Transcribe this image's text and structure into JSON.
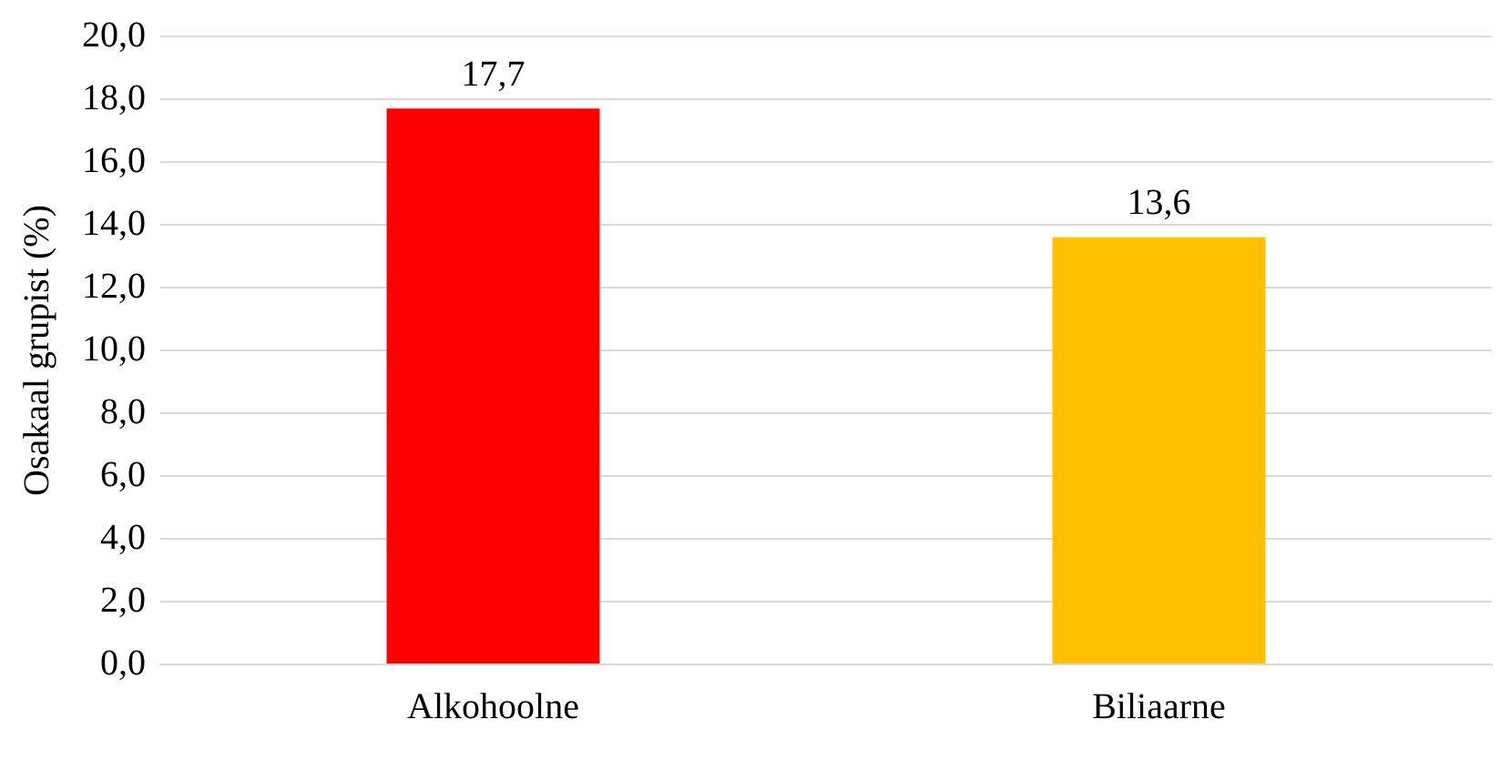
{
  "chart_data": {
    "type": "bar",
    "ylabel": "Osakaal grupist (%)",
    "categories": [
      "Alkohoolne",
      "Biliaarne"
    ],
    "values": [
      17.7,
      13.6
    ],
    "colors": [
      "#ff0000",
      "#ffc000"
    ],
    "value_labels": [
      "17,7",
      "13,6"
    ],
    "ylim": [
      0,
      20
    ],
    "yticks": [
      {
        "value": 0,
        "label": "0,0"
      },
      {
        "value": 2,
        "label": "2,0"
      },
      {
        "value": 4,
        "label": "4,0"
      },
      {
        "value": 6,
        "label": "6,0"
      },
      {
        "value": 8,
        "label": "8,0"
      },
      {
        "value": 10,
        "label": "10,0"
      },
      {
        "value": 12,
        "label": "12,0"
      },
      {
        "value": 14,
        "label": "14,0"
      },
      {
        "value": 16,
        "label": "16,0"
      },
      {
        "value": 18,
        "label": "18,0"
      },
      {
        "value": 20,
        "label": "20,0"
      }
    ],
    "grid": "y",
    "legend": false
  }
}
